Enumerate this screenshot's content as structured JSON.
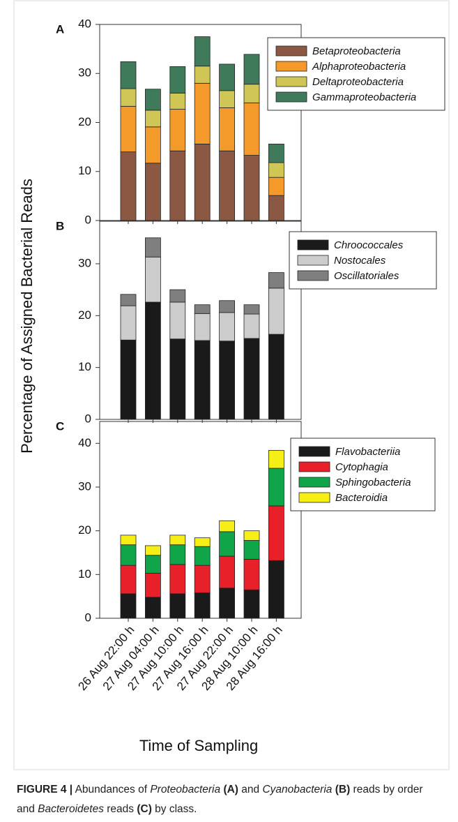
{
  "figure": {
    "ylabel": "Percentage of Assigned Bacterial Reads",
    "xlabel": "Time of Sampling",
    "caption": [
      {
        "text": "FIGURE 4 |",
        "bold": true
      },
      {
        "text": " Abundances of "
      },
      {
        "text": "Proteobacteria",
        "italic": true
      },
      {
        "text": " "
      },
      {
        "text": "(A)",
        "bold": true
      },
      {
        "text": " and "
      },
      {
        "text": "Cyanobacteria",
        "italic": true
      },
      {
        "text": " "
      },
      {
        "text": "(B)",
        "bold": true
      },
      {
        "text": " reads by order and "
      },
      {
        "text": "Bacteroidetes",
        "italic": true
      },
      {
        "text": " reads "
      },
      {
        "text": "(C)",
        "bold": true
      },
      {
        "text": " by class."
      }
    ]
  },
  "chart_data": [
    {
      "type": "stacked-bar",
      "panel_label": "A",
      "ylim": [
        0,
        40
      ],
      "yticks": [
        0,
        10,
        20,
        30,
        40
      ],
      "series": [
        {
          "name": "Betaproteobacteria",
          "color": "#8b5844",
          "values": [
            14,
            11.7,
            14.2,
            15.6,
            14.2,
            13.3,
            5.1
          ]
        },
        {
          "name": "Alphaproteobacteria",
          "color": "#f39a2b",
          "values": [
            9.3,
            7.4,
            8.5,
            12.4,
            8.8,
            10.7,
            3.7
          ]
        },
        {
          "name": "Deltaproteobacteria",
          "color": "#cfc656",
          "values": [
            3.6,
            3.4,
            3.3,
            3.5,
            3.5,
            3.8,
            3.0
          ]
        },
        {
          "name": "Gammaproteobacteria",
          "color": "#3f7a5a",
          "values": [
            5.5,
            4.3,
            5.4,
            6.0,
            5.4,
            6.1,
            3.8
          ]
        }
      ]
    },
    {
      "type": "stacked-bar",
      "panel_label": "B",
      "ylim": [
        0,
        38.2
      ],
      "yticks": [
        0,
        10,
        20,
        30
      ],
      "series": [
        {
          "name": "Chroococcales",
          "color": "#1a1a1a",
          "values": [
            15.3,
            22.6,
            15.5,
            15.2,
            15.1,
            15.6,
            16.4
          ]
        },
        {
          "name": "Nostocales",
          "color": "#cccccc",
          "values": [
            6.6,
            8.7,
            7.1,
            5.2,
            5.5,
            4.7,
            8.9
          ]
        },
        {
          "name": "Oscillatoriales",
          "color": "#7f7f80",
          "values": [
            2.2,
            3.7,
            2.4,
            1.7,
            2.3,
            1.8,
            3.0
          ]
        }
      ]
    },
    {
      "type": "stacked-bar",
      "panel_label": "C",
      "ylim": [
        0,
        45
      ],
      "yticks": [
        0,
        10,
        20,
        30,
        40
      ],
      "categories": [
        "26 Aug 22:00 h",
        "27 Aug 04:00 h",
        "27 Aug 10:00 h",
        "27 Aug 16:00 h",
        "27 Aug 22:00 h",
        "28 Aug 10:00 h",
        "28 Aug 16:00 h"
      ],
      "series": [
        {
          "name": "Flavobacteriia",
          "color": "#1a1a1a",
          "values": [
            5.6,
            4.8,
            5.6,
            5.8,
            6.9,
            6.5,
            13.2
          ]
        },
        {
          "name": "Cytophagia",
          "color": "#e8202a",
          "values": [
            6.5,
            5.5,
            6.7,
            6.3,
            7.3,
            7.0,
            12.5
          ]
        },
        {
          "name": "Sphingobacteria",
          "color": "#11a54a",
          "values": [
            4.7,
            4.1,
            4.5,
            4.3,
            5.6,
            4.3,
            8.6
          ]
        },
        {
          "name": "Bacteroidia",
          "color": "#f7ee15",
          "values": [
            2.2,
            2.2,
            2.2,
            2.0,
            2.5,
            2.2,
            4.1
          ]
        }
      ]
    }
  ]
}
